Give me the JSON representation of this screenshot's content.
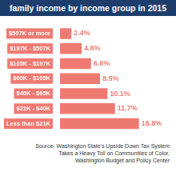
{
  "chart_data": {
    "type": "bar",
    "orientation": "horizontal",
    "title": "family income by income group in 2015",
    "categories": [
      "$507K or more",
      "$197K - $507K",
      "$105K - $197K",
      "$65K - $105K",
      "$40K - $65K",
      "$21K - $40K",
      "Less than $21K"
    ],
    "values": [
      2.4,
      4.6,
      6.6,
      8.5,
      10.1,
      11.7,
      16.8
    ],
    "value_labels": [
      "2.4%",
      "4.6%",
      "6.6%",
      "8.5%",
      "10.1%",
      "11.7%",
      "16.8%"
    ],
    "color": "#ef7a72",
    "xlim": [
      0,
      24
    ],
    "data_labels": true,
    "tick_labels": "y",
    "grid": false,
    "source": "Source- Washington State's Upside Down Tax System Takes a Heavy Toll on Communities of Color, Washington Budget and Policy Center"
  }
}
